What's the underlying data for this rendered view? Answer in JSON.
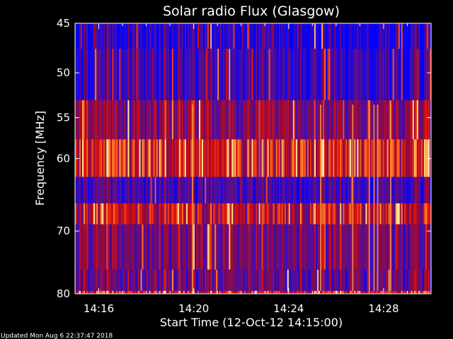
{
  "chart_data": {
    "type": "heatmap",
    "title": "Solar radio Flux (Glasgow)",
    "xlabel": "Start Time (12-Oct-12 14:15:00)",
    "ylabel": "Frequency [MHz]",
    "x_tick_labels": [
      "14:16",
      "14:20",
      "14:24",
      "14:28"
    ],
    "x_tick_values_min": [
      1,
      5,
      9,
      13
    ],
    "xlim_min": [
      0,
      15
    ],
    "y_tick_labels": [
      "45",
      "50",
      "55",
      "60",
      "70",
      "80"
    ],
    "y_tick_values": [
      45,
      50,
      55,
      60,
      70,
      80
    ],
    "ylim": [
      45,
      80
    ],
    "y_scale": "log",
    "grid": false,
    "colormap": [
      "#0000ff",
      "#4b0fa5",
      "#8c0a46",
      "#dc0f0a",
      "#ff6e1e",
      "#ffe696"
    ],
    "background_color": "#000000",
    "frequency_bands": [
      {
        "from": 45.0,
        "to": 47.5,
        "level": 0.12
      },
      {
        "from": 47.5,
        "to": 53.0,
        "level": 0.18
      },
      {
        "from": 53.0,
        "to": 57.6,
        "level": 0.38
      },
      {
        "from": 57.6,
        "to": 62.4,
        "level": 0.62
      },
      {
        "from": 62.4,
        "to": 66.0,
        "level": 0.2
      },
      {
        "from": 66.0,
        "to": 69.0,
        "level": 0.55
      },
      {
        "from": 69.0,
        "to": 76.0,
        "level": 0.34
      },
      {
        "from": 76.0,
        "to": 79.5,
        "level": 0.3
      },
      {
        "from": 79.5,
        "to": 80.0,
        "level": 0.6
      }
    ],
    "bright_bursts_min": [
      4.95,
      10.35,
      11.7,
      12.4,
      12.6,
      12.75,
      13.3
    ]
  },
  "footer": {
    "updated_text": "Updated Mon Aug  6 22:37:47 2018"
  }
}
